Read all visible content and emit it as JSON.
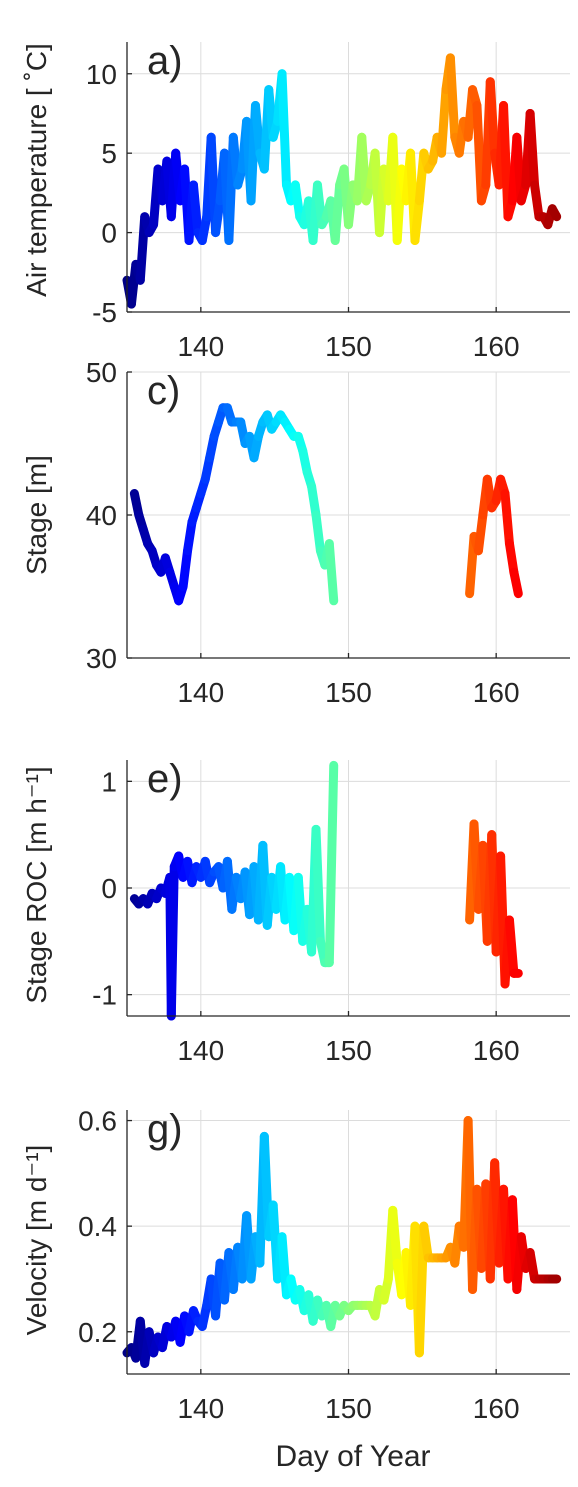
{
  "figure": {
    "xlabel": "Day of Year",
    "x_ticks": [
      140,
      150,
      160
    ],
    "xlim": [
      135,
      165
    ]
  },
  "chart_data": [
    {
      "type": "line",
      "panel_label": "a)",
      "ylabel": "Air temperature [ ˚C]",
      "ylim": [
        -5,
        12
      ],
      "y_ticks": [
        -5,
        0,
        5,
        10
      ],
      "grid": true,
      "x": [
        135.0,
        135.3,
        135.6,
        135.9,
        136.2,
        136.5,
        136.8,
        137.1,
        137.4,
        137.7,
        138.0,
        138.3,
        138.6,
        138.9,
        139.2,
        139.5,
        139.8,
        140.1,
        140.4,
        140.7,
        141.0,
        141.3,
        141.6,
        141.9,
        142.2,
        142.5,
        142.8,
        143.1,
        143.4,
        143.7,
        144.0,
        144.3,
        144.6,
        144.9,
        145.2,
        145.5,
        145.8,
        146.1,
        146.4,
        146.7,
        147.0,
        147.3,
        147.6,
        147.9,
        148.2,
        148.5,
        148.8,
        149.1,
        149.4,
        149.7,
        150.0,
        150.3,
        150.6,
        150.9,
        151.2,
        151.5,
        151.8,
        152.1,
        152.4,
        152.7,
        153.0,
        153.3,
        153.6,
        153.9,
        154.2,
        154.5,
        154.8,
        155.1,
        155.4,
        155.7,
        156.0,
        156.3,
        156.6,
        156.9,
        157.2,
        157.5,
        157.8,
        158.1,
        158.4,
        158.7,
        159.0,
        159.3,
        159.6,
        159.9,
        160.2,
        160.5,
        160.8,
        161.1,
        161.4,
        161.7,
        162.0,
        162.3,
        162.6,
        162.9,
        163.2,
        163.5,
        163.8,
        164.1
      ],
      "y": [
        -3,
        -4.5,
        -2,
        -3,
        1,
        0,
        0.5,
        4,
        2,
        4.5,
        1,
        5,
        2,
        4,
        -0.5,
        3,
        0,
        -0.5,
        1,
        6,
        0,
        2,
        5,
        -0.5,
        6,
        3,
        4,
        7,
        2,
        8,
        5,
        4,
        9,
        6,
        7,
        10,
        3,
        2,
        3,
        1,
        0.5,
        2,
        -0.5,
        3,
        0.5,
        1,
        2,
        -0.5,
        3,
        4,
        0.5,
        3,
        2,
        6,
        2,
        3,
        5,
        0,
        4,
        2,
        6,
        -0.5,
        4,
        2,
        5,
        -0.5,
        2,
        5,
        4,
        4.5,
        6,
        5,
        9,
        11,
        6,
        5,
        7,
        6,
        9,
        8,
        2,
        3,
        9.5,
        5,
        3,
        8,
        1,
        2,
        6,
        2,
        3,
        7.5,
        3,
        1,
        1,
        0.5,
        1.5,
        1
      ],
      "series_color_scale": "jet by day of year"
    },
    {
      "type": "line",
      "panel_label": "c)",
      "ylabel": "Stage [m]",
      "ylim": [
        30,
        50
      ],
      "y_ticks": [
        30,
        40,
        50
      ],
      "grid": true,
      "x": [
        135.5,
        135.8,
        136.1,
        136.4,
        136.7,
        137.0,
        137.3,
        137.6,
        137.9,
        138.2,
        138.5,
        138.8,
        139.1,
        139.4,
        139.7,
        140.0,
        140.3,
        140.6,
        140.9,
        141.2,
        141.5,
        141.8,
        142.1,
        142.4,
        142.7,
        143.0,
        143.3,
        143.6,
        143.9,
        144.2,
        144.5,
        144.8,
        145.1,
        145.4,
        145.7,
        146.0,
        146.3,
        146.6,
        146.9,
        147.2,
        147.5,
        147.8,
        148.1,
        148.4,
        148.7,
        149.0,
        158.2,
        158.5,
        158.8,
        159.1,
        159.4,
        159.7,
        160.0,
        160.3,
        160.6,
        160.9,
        161.2,
        161.5
      ],
      "y": [
        41.5,
        40,
        39,
        38,
        37.5,
        36.5,
        36,
        37,
        36,
        35,
        34,
        35,
        37.5,
        39.5,
        40.5,
        41.5,
        42.5,
        44,
        45.5,
        46.5,
        47.5,
        47.5,
        46.5,
        46.5,
        46.5,
        45,
        45.5,
        44,
        45.5,
        46.5,
        47,
        46,
        46.5,
        47,
        46.5,
        46,
        45.5,
        45.5,
        44.5,
        43,
        42,
        40,
        37.5,
        36.5,
        38,
        34,
        34.5,
        38.5,
        37.5,
        40,
        42.5,
        40.5,
        41,
        42.5,
        41.5,
        38,
        36,
        34.5
      ],
      "series_color_scale": "jet by day of year"
    },
    {
      "type": "line",
      "panel_label": "e)",
      "ylabel": "Stage ROC [m h⁻¹]",
      "ylim": [
        -1.2,
        1.2
      ],
      "y_ticks": [
        -1,
        0,
        1
      ],
      "grid": true,
      "x": [
        135.5,
        135.8,
        136.1,
        136.4,
        136.7,
        137.0,
        137.3,
        137.6,
        137.9,
        138.0,
        138.2,
        138.5,
        138.8,
        139.1,
        139.4,
        139.7,
        140.0,
        140.3,
        140.6,
        140.9,
        141.2,
        141.5,
        141.8,
        142.1,
        142.4,
        142.7,
        143.0,
        143.3,
        143.6,
        143.9,
        144.2,
        144.5,
        144.8,
        145.1,
        145.4,
        145.7,
        146.0,
        146.3,
        146.6,
        146.9,
        147.2,
        147.5,
        147.8,
        148.1,
        148.4,
        148.7,
        149.0,
        158.2,
        158.5,
        158.8,
        159.1,
        159.4,
        159.7,
        160.0,
        160.3,
        160.6,
        160.9,
        161.2,
        161.5
      ],
      "y": [
        -0.1,
        -0.15,
        -0.1,
        -0.15,
        -0.05,
        -0.1,
        0,
        -0.05,
        0.1,
        -1.2,
        0.2,
        0.3,
        0.1,
        0.25,
        0.05,
        0.2,
        0.1,
        0.25,
        0.05,
        0.15,
        0.2,
        0,
        0.25,
        -0.2,
        0.1,
        -0.1,
        0.15,
        -0.25,
        0.2,
        -0.3,
        0.4,
        -0.35,
        0.1,
        -0.2,
        0.2,
        -0.3,
        0.1,
        -0.4,
        0.1,
        -0.5,
        -0.2,
        -0.6,
        0.55,
        -0.5,
        -0.7,
        -0.7,
        1.15,
        -0.3,
        0.6,
        -0.2,
        0.4,
        -0.5,
        0.5,
        -0.6,
        0.3,
        -0.9,
        -0.3,
        -0.8,
        -0.8
      ],
      "series_color_scale": "jet by day of year"
    },
    {
      "type": "line",
      "panel_label": "g)",
      "ylabel": "Velocity [m d⁻¹]",
      "ylim": [
        0.12,
        0.62
      ],
      "y_ticks": [
        0.2,
        0.4,
        0.6
      ],
      "grid": true,
      "x": [
        135.0,
        135.3,
        135.6,
        135.9,
        136.2,
        136.5,
        136.8,
        137.1,
        137.4,
        137.7,
        138.0,
        138.3,
        138.6,
        138.9,
        139.2,
        139.5,
        139.8,
        140.1,
        140.4,
        140.7,
        141.0,
        141.3,
        141.6,
        141.9,
        142.2,
        142.5,
        142.8,
        143.1,
        143.4,
        143.7,
        144.0,
        144.3,
        144.6,
        144.9,
        145.2,
        145.5,
        145.8,
        146.1,
        146.4,
        146.7,
        147.0,
        147.3,
        147.6,
        147.9,
        148.2,
        148.5,
        148.8,
        149.1,
        149.4,
        149.7,
        150.0,
        150.3,
        150.6,
        150.9,
        151.2,
        151.5,
        151.8,
        152.1,
        152.4,
        152.7,
        153.0,
        153.3,
        153.6,
        153.9,
        154.2,
        154.5,
        154.8,
        155.1,
        155.4,
        155.7,
        156.0,
        156.3,
        156.6,
        156.9,
        157.2,
        157.5,
        157.8,
        158.1,
        158.4,
        158.7,
        159.0,
        159.3,
        159.6,
        159.9,
        160.2,
        160.5,
        160.8,
        161.1,
        161.4,
        161.7,
        162.0,
        162.3,
        162.6,
        162.9,
        163.2,
        163.5,
        163.8,
        164.1
      ],
      "y": [
        0.16,
        0.17,
        0.15,
        0.22,
        0.14,
        0.2,
        0.16,
        0.19,
        0.17,
        0.21,
        0.19,
        0.22,
        0.18,
        0.23,
        0.2,
        0.24,
        0.22,
        0.21,
        0.25,
        0.3,
        0.23,
        0.33,
        0.26,
        0.35,
        0.28,
        0.36,
        0.3,
        0.42,
        0.3,
        0.38,
        0.33,
        0.57,
        0.38,
        0.44,
        0.3,
        0.38,
        0.27,
        0.3,
        0.26,
        0.28,
        0.24,
        0.27,
        0.22,
        0.26,
        0.23,
        0.25,
        0.21,
        0.25,
        0.23,
        0.25,
        0.24,
        0.25,
        0.25,
        0.25,
        0.25,
        0.25,
        0.23,
        0.28,
        0.26,
        0.3,
        0.43,
        0.33,
        0.27,
        0.35,
        0.25,
        0.4,
        0.16,
        0.4,
        0.34,
        0.34,
        0.34,
        0.34,
        0.34,
        0.36,
        0.33,
        0.4,
        0.36,
        0.6,
        0.28,
        0.47,
        0.32,
        0.48,
        0.3,
        0.52,
        0.33,
        0.47,
        0.3,
        0.45,
        0.28,
        0.38,
        0.32,
        0.35,
        0.3,
        0.3,
        0.3,
        0.3,
        0.3,
        0.3
      ],
      "series_color_scale": "jet by day of year"
    }
  ]
}
